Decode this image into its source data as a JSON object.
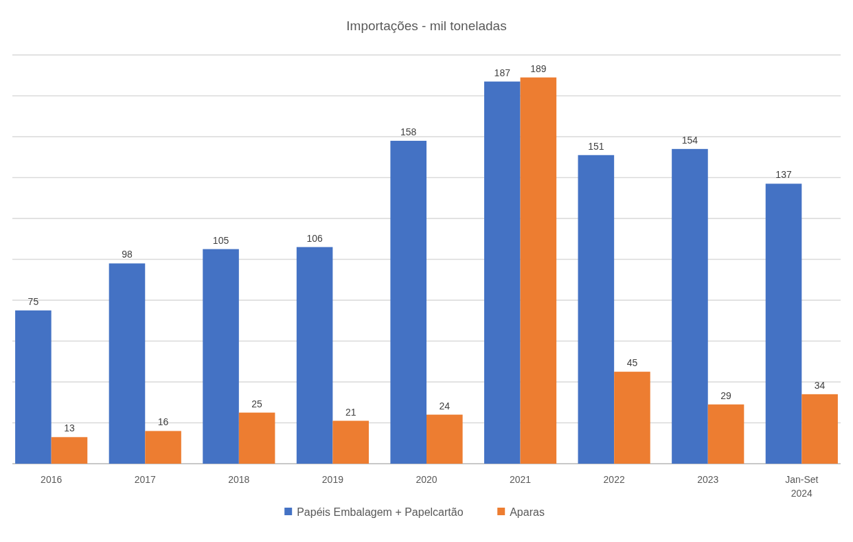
{
  "chart_data": {
    "type": "bar",
    "title": "Importações - mil toneladas",
    "categories": [
      "2016",
      "2017",
      "2018",
      "2019",
      "2020",
      "2021",
      "2022",
      "2023",
      "Jan-Set 2024"
    ],
    "series": [
      {
        "name": "Papéis Embalagem + Papelcartão",
        "color": "#4472c4",
        "values": [
          75,
          98,
          105,
          106,
          158,
          187,
          151,
          154,
          137
        ]
      },
      {
        "name": "Aparas",
        "color": "#ed7d31",
        "values": [
          13,
          16,
          25,
          21,
          24,
          189,
          45,
          29,
          34
        ]
      }
    ],
    "ylim": [
      0,
      200
    ],
    "yticks": [
      {
        "value": 0,
        "label": null
      },
      {
        "value": 20,
        "label": null
      },
      {
        "value": 40,
        "label": null
      },
      {
        "value": 60,
        "label": null
      },
      {
        "value": 80,
        "label": null
      },
      {
        "value": 100,
        "label": null
      },
      {
        "value": 120,
        "label": null
      },
      {
        "value": 140,
        "label": null
      },
      {
        "value": 160,
        "label": null
      },
      {
        "value": 180,
        "label": null
      },
      {
        "value": 200,
        "label": null
      }
    ],
    "tick_labels": "x",
    "grid": "y",
    "data_labels": true,
    "legend": "bottom"
  }
}
